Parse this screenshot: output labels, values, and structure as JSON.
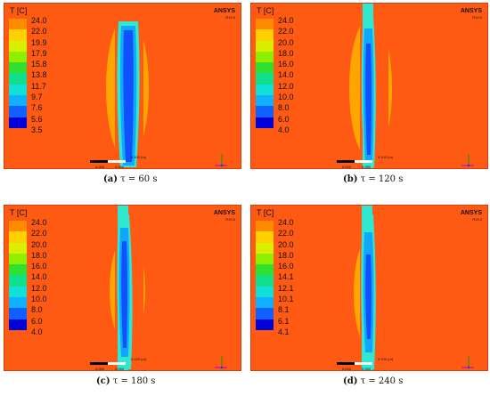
{
  "figure": {
    "panels": [
      {
        "id": "a",
        "title": "T [C]",
        "brand": "ANSYS",
        "brand_version": "R19.0",
        "legend_ticks": [
          "24.0",
          "22.0",
          "19.9",
          "17.9",
          "15.8",
          "13.8",
          "11.7",
          "9.7",
          "7.6",
          "5.6",
          "3.5"
        ],
        "scale_labels": [
          "0.000",
          "0.050",
          "0.100 (m)"
        ],
        "caption_letter": "(a)",
        "caption_text": "τ = 60 s"
      },
      {
        "id": "b",
        "title": "T [C]",
        "brand": "ANSYS",
        "brand_version": "R19.0",
        "legend_ticks": [
          "24.0",
          "22.0",
          "20.0",
          "18.0",
          "16.0",
          "14.0",
          "12.0",
          "10.0",
          "8.0",
          "6.0",
          "4.0"
        ],
        "scale_labels": [
          "0.000",
          "0.050",
          "0.100 (m)"
        ],
        "caption_letter": "(b)",
        "caption_text": "τ = 120 s"
      },
      {
        "id": "c",
        "title": "T [C]",
        "brand": "ANSYS",
        "brand_version": "R19.0",
        "legend_ticks": [
          "24.0",
          "22.0",
          "20.0",
          "18.0",
          "16.0",
          "14.0",
          "12.0",
          "10.0",
          "8.0",
          "6.0",
          "4.0"
        ],
        "scale_labels": [
          "0.000",
          "0.050",
          "0.100 (m)"
        ],
        "caption_letter": "(c)",
        "caption_text": "τ = 180 s"
      },
      {
        "id": "d",
        "title": "T [C]",
        "brand": "ANSYS",
        "brand_version": "R19.0",
        "legend_ticks": [
          "24.0",
          "22.0",
          "20.0",
          "18.0",
          "16.0",
          "14.1",
          "12.1",
          "10.1",
          "8.1",
          "6.1",
          "4.1"
        ],
        "scale_labels": [
          "0.000",
          "0.050",
          "0.100 (m)"
        ],
        "caption_letter": "(d)",
        "caption_text": "τ = 240 s"
      }
    ],
    "colors": {
      "background": "#ff5a14",
      "legend": [
        "#ff1a00",
        "#ff8c00",
        "#ffd000",
        "#d8f000",
        "#8ef000",
        "#30e030",
        "#10e08c",
        "#10e0d8",
        "#10b0ff",
        "#1060ff",
        "#0000d8"
      ]
    }
  }
}
